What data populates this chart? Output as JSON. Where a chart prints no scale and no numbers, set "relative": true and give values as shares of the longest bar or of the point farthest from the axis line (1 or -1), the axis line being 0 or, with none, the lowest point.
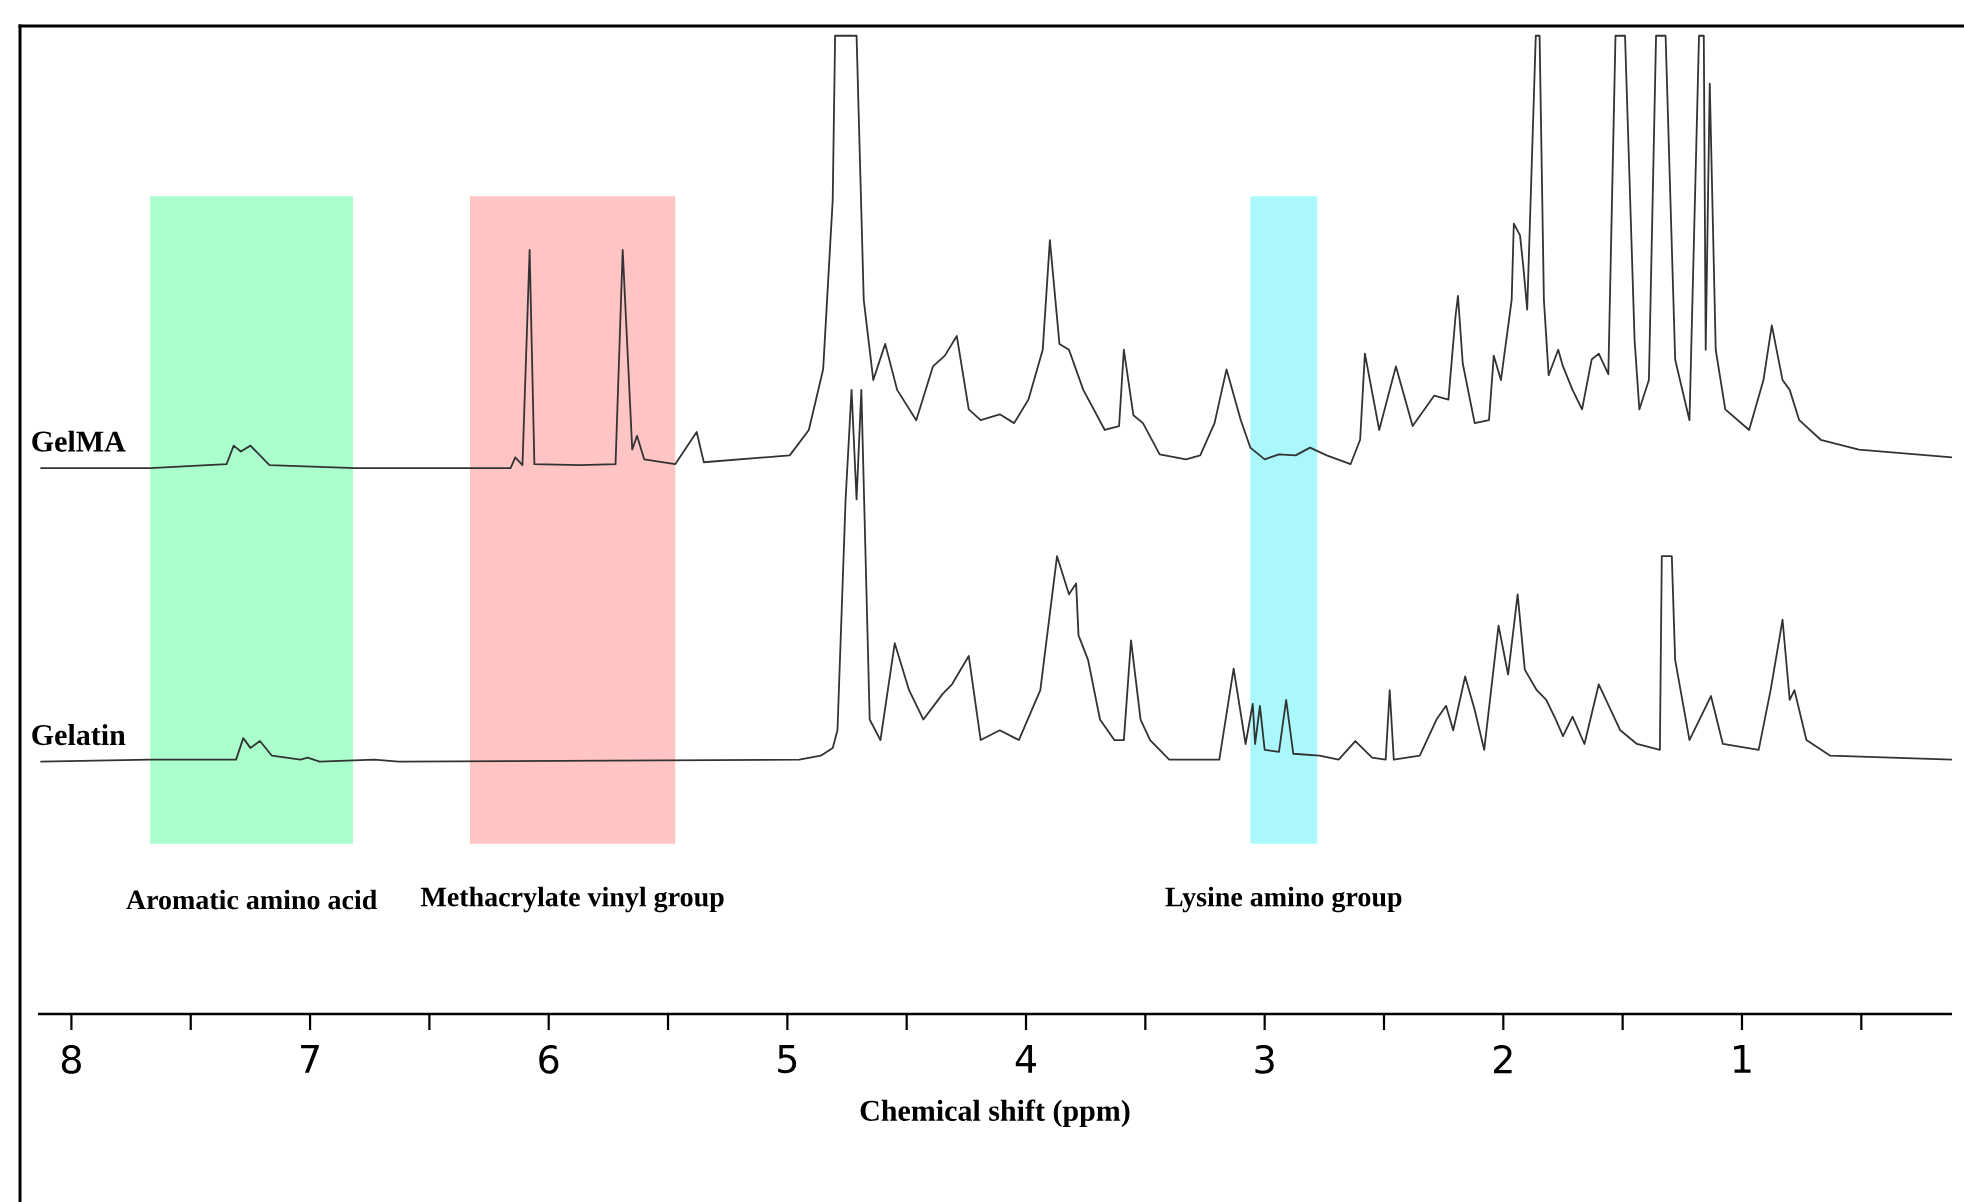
{
  "chart_data": {
    "type": "line",
    "relative": true,
    "xlabel": "Chemical shift (ppm)",
    "xlim": [
      8.14,
      0.12
    ],
    "xticks": [
      8,
      7,
      6,
      5,
      4,
      3,
      2,
      1,
      {
        "value": 7.5,
        "label": null
      },
      {
        "value": 6.5,
        "label": null
      },
      {
        "value": 5.5,
        "label": null
      },
      {
        "value": 4.5,
        "label": null
      },
      {
        "value": 3.5,
        "label": null
      },
      {
        "value": 2.5,
        "label": null
      },
      {
        "value": 1.5,
        "label": null
      },
      {
        "value": 0.5,
        "label": null
      }
    ],
    "bands": [
      {
        "axis": "x",
        "from": 7.67,
        "to": 6.82,
        "label": "Aromatic amino acid",
        "color": "#aaffcc"
      },
      {
        "axis": "x",
        "from": 6.33,
        "to": 5.47,
        "label": "Methacrylate vinyl group",
        "color": "#ffc4c4"
      },
      {
        "axis": "x",
        "from": 3.06,
        "to": 2.78,
        "label": "Lysine amino group",
        "color": "#aaf8fb"
      }
    ],
    "series": [
      {
        "name": "GelMA",
        "color": "#333333",
        "x": [
          8.13,
          7.67,
          7.35,
          7.32,
          7.29,
          7.25,
          7.17,
          6.81,
          6.16,
          6.14,
          6.11,
          6.08,
          6.06,
          5.87,
          5.72,
          5.69,
          5.65,
          5.63,
          5.6,
          5.47,
          5.38,
          5.35,
          4.99,
          4.91,
          4.85,
          4.81,
          4.8,
          4.71,
          4.68,
          4.64,
          4.59,
          4.54,
          4.46,
          4.39,
          4.34,
          4.29,
          4.24,
          4.19,
          4.11,
          4.05,
          3.99,
          3.93,
          3.9,
          3.86,
          3.82,
          3.76,
          3.67,
          3.61,
          3.59,
          3.55,
          3.51,
          3.44,
          3.33,
          3.27,
          3.21,
          3.16,
          3.1,
          3.06,
          3.0,
          2.94,
          2.87,
          2.81,
          2.74,
          2.64,
          2.6,
          2.58,
          2.52,
          2.45,
          2.38,
          2.29,
          2.23,
          2.2,
          2.19,
          2.17,
          2.12,
          2.06,
          2.04,
          2.01,
          1.965,
          1.956,
          1.93,
          1.915,
          1.9,
          1.89,
          1.864,
          1.848,
          1.83,
          1.81,
          1.77,
          1.75,
          1.71,
          1.67,
          1.63,
          1.6,
          1.56,
          1.53,
          1.49,
          1.45,
          1.43,
          1.39,
          1.36,
          1.32,
          1.28,
          1.22,
          1.18,
          1.16,
          1.152,
          1.135,
          1.11,
          1.07,
          0.97,
          0.91,
          0.875,
          0.83,
          0.8,
          0.76,
          0.67,
          0.51,
          0.12
        ],
        "values": [
          0.558,
          0.558,
          0.562,
          0.581,
          0.575,
          0.581,
          0.561,
          0.558,
          0.558,
          0.569,
          0.561,
          0.781,
          0.562,
          0.561,
          0.562,
          0.781,
          0.577,
          0.591,
          0.567,
          0.562,
          0.595,
          0.564,
          0.571,
          0.597,
          0.659,
          0.832,
          1.0,
          1.0,
          0.73,
          0.648,
          0.685,
          0.638,
          0.607,
          0.662,
          0.673,
          0.693,
          0.618,
          0.607,
          0.613,
          0.604,
          0.628,
          0.679,
          0.791,
          0.685,
          0.679,
          0.638,
          0.597,
          0.601,
          0.679,
          0.612,
          0.604,
          0.572,
          0.567,
          0.571,
          0.604,
          0.659,
          0.607,
          0.579,
          0.567,
          0.572,
          0.571,
          0.579,
          0.571,
          0.562,
          0.587,
          0.675,
          0.597,
          0.662,
          0.601,
          0.632,
          0.628,
          0.714,
          0.734,
          0.665,
          0.604,
          0.607,
          0.673,
          0.648,
          0.73,
          0.808,
          0.796,
          0.761,
          0.72,
          0.797,
          1.0,
          1.0,
          0.73,
          0.653,
          0.679,
          0.662,
          0.638,
          0.618,
          0.669,
          0.675,
          0.654,
          1.0,
          1.0,
          0.689,
          0.618,
          0.648,
          1.0,
          1.0,
          0.669,
          0.607,
          1.0,
          1.0,
          0.679,
          0.951,
          0.679,
          0.618,
          0.597,
          0.648,
          0.704,
          0.648,
          0.638,
          0.607,
          0.587,
          0.577,
          0.569
        ]
      },
      {
        "name": "Gelatin",
        "color": "#333333",
        "x": [
          8.13,
          7.67,
          7.31,
          7.28,
          7.25,
          7.21,
          7.16,
          7.04,
          7.01,
          6.96,
          6.73,
          6.63,
          4.95,
          4.86,
          4.81,
          4.79,
          4.756,
          4.731,
          4.71,
          4.69,
          4.655,
          4.61,
          4.55,
          4.49,
          4.43,
          4.35,
          4.31,
          4.24,
          4.19,
          4.11,
          4.03,
          3.94,
          3.87,
          3.82,
          3.79,
          3.78,
          3.74,
          3.69,
          3.63,
          3.59,
          3.56,
          3.52,
          3.48,
          3.4,
          3.19,
          3.13,
          3.08,
          3.05,
          3.04,
          3.02,
          3.0,
          2.94,
          2.91,
          2.88,
          2.77,
          2.69,
          2.62,
          2.55,
          2.493,
          2.476,
          2.459,
          2.35,
          2.28,
          2.24,
          2.21,
          2.16,
          2.12,
          2.08,
          2.02,
          1.98,
          1.94,
          1.91,
          1.86,
          1.82,
          1.78,
          1.75,
          1.71,
          1.66,
          1.6,
          1.51,
          1.44,
          1.344,
          1.336,
          1.294,
          1.28,
          1.22,
          1.13,
          1.08,
          0.93,
          0.88,
          0.83,
          0.8,
          0.78,
          0.73,
          0.63,
          0.12
        ],
        "values": [
          0.258,
          0.26,
          0.26,
          0.282,
          0.272,
          0.279,
          0.264,
          0.26,
          0.262,
          0.258,
          0.26,
          0.258,
          0.26,
          0.264,
          0.272,
          0.29,
          0.526,
          0.638,
          0.526,
          0.638,
          0.301,
          0.28,
          0.379,
          0.331,
          0.301,
          0.327,
          0.337,
          0.366,
          0.28,
          0.29,
          0.28,
          0.331,
          0.468,
          0.429,
          0.44,
          0.387,
          0.362,
          0.301,
          0.28,
          0.28,
          0.382,
          0.301,
          0.28,
          0.26,
          0.26,
          0.353,
          0.276,
          0.317,
          0.276,
          0.315,
          0.27,
          0.268,
          0.321,
          0.266,
          0.264,
          0.26,
          0.279,
          0.262,
          0.26,
          0.331,
          0.26,
          0.264,
          0.301,
          0.315,
          0.29,
          0.345,
          0.311,
          0.27,
          0.397,
          0.347,
          0.429,
          0.352,
          0.331,
          0.321,
          0.301,
          0.284,
          0.304,
          0.276,
          0.337,
          0.29,
          0.276,
          0.27,
          0.468,
          0.468,
          0.362,
          0.28,
          0.325,
          0.276,
          0.27,
          0.331,
          0.403,
          0.321,
          0.331,
          0.28,
          0.264,
          0.26
        ]
      }
    ]
  }
}
